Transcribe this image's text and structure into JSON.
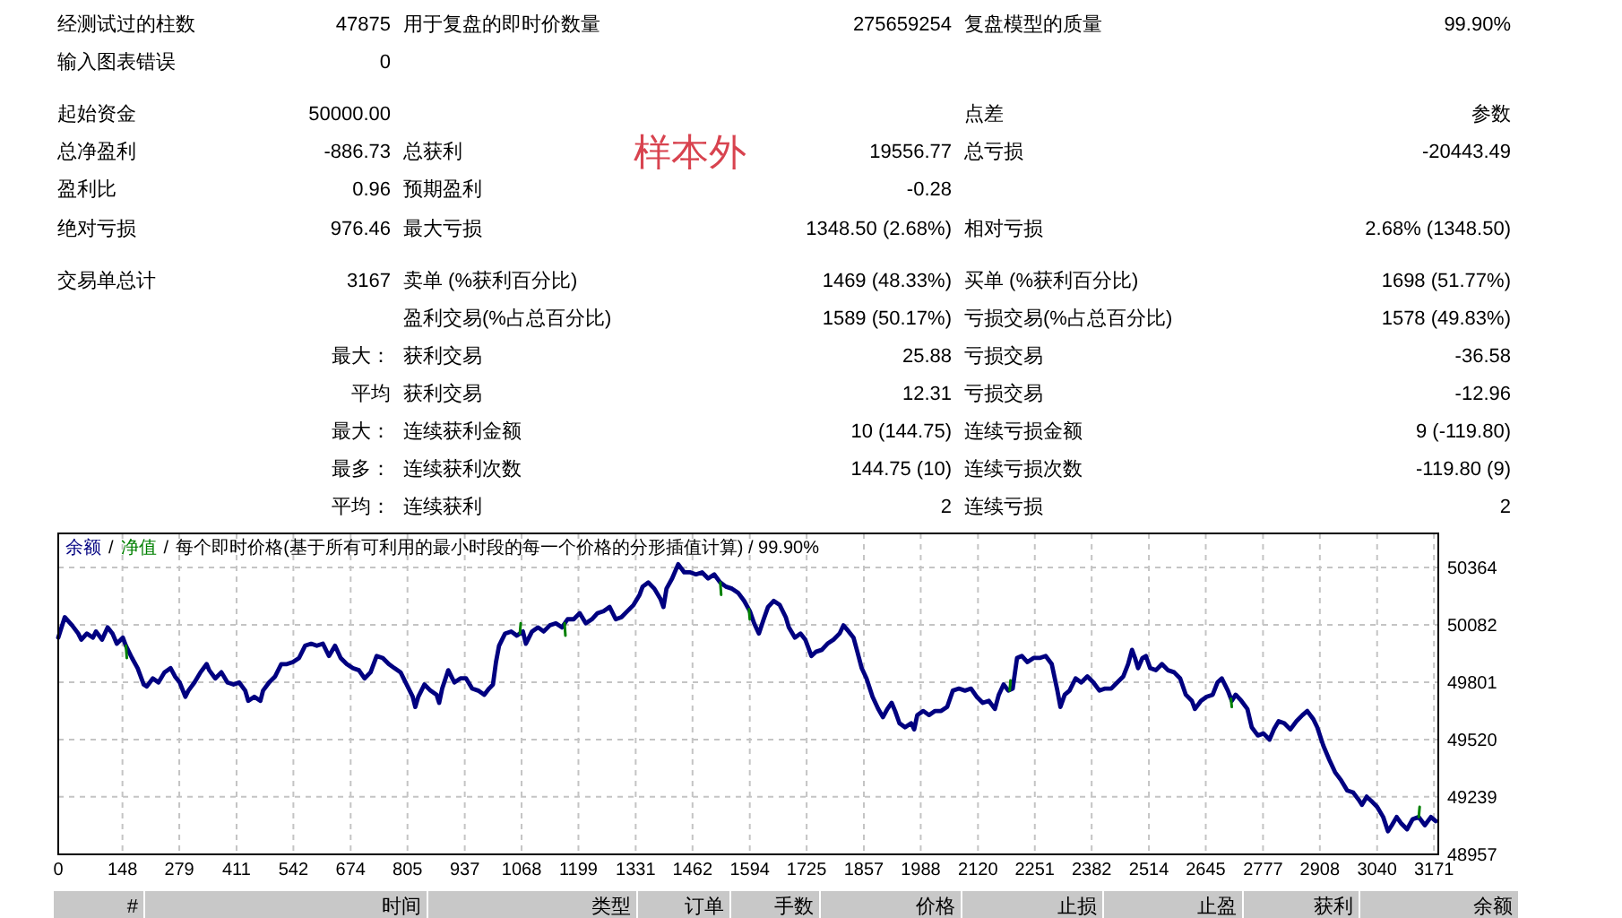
{
  "chart_data": [
    {
      "type": "other",
      "annotations": [
        "经测试过的柱数",
        "47875",
        "用于复盘的即时价数量",
        "275659254",
        "复盘模型的质量",
        "99.90%",
        "输入图表错误",
        "0",
        "起始资金",
        "50000.00",
        "点差",
        "参数",
        "总净盈利",
        "-886.73",
        "总获利",
        "样本外",
        "19556.77",
        "总亏损",
        "-20443.49",
        "盈利比",
        "0.96",
        "预期盈利",
        "-0.28",
        "绝对亏损",
        "976.46",
        "最大亏损",
        "1348.50 (2.68%)",
        "相对亏损",
        "2.68% (1348.50)",
        "交易单总计",
        "3167",
        "卖单 (%获利百分比)",
        "1469 (48.33%)",
        "买单 (%获利百分比)",
        "1698 (51.77%)",
        "盈利交易(%占总百分比)",
        "1589 (50.17%)",
        "亏损交易(%占总百分比)",
        "1578 (49.83%)",
        "最大：",
        "获利交易",
        "25.88",
        "亏损交易",
        "-36.58",
        "平均",
        "获利交易",
        "12.31",
        "亏损交易",
        "-12.96",
        "最大：",
        "连续获利金额",
        "10 (144.75)",
        "连续亏损金额",
        "9 (-119.80)",
        "最多：",
        "连续获利次数",
        "144.75 (10)",
        "连续亏损次数",
        "-119.80 (9)",
        "平均：",
        "连续获利",
        "2",
        "连续亏损",
        "2"
      ]
    },
    {
      "type": "line",
      "title": "每个即时价格(基于所有可利用的最小时段的每一个价格的分形插值计算) / 99.90%",
      "annotations": [
        "/",
        "/"
      ],
      "legend": "top left",
      "grid": true,
      "xlim": [
        0,
        3181
      ],
      "xticks": [
        0,
        148,
        279,
        411,
        542,
        674,
        805,
        937,
        1068,
        1199,
        1331,
        1462,
        1594,
        1725,
        1857,
        1988,
        2120,
        2251,
        2382,
        2514,
        2645,
        2777,
        2908,
        3040,
        3171
      ],
      "ylim": [
        48957,
        50531
      ],
      "yticks": [
        48957,
        49239,
        49520,
        49801,
        50082,
        50364
      ],
      "x": [
        0,
        15,
        32,
        46,
        53,
        66,
        80,
        87,
        101,
        114,
        125,
        135,
        149,
        156,
        170,
        183,
        197,
        204,
        218,
        231,
        245,
        259,
        269,
        280,
        293,
        300,
        314,
        328,
        342,
        348,
        362,
        376,
        390,
        404,
        417,
        431,
        438,
        452,
        466,
        472,
        486,
        500,
        514,
        527,
        541,
        555,
        569,
        583,
        596,
        610,
        624,
        638,
        651,
        665,
        679,
        693,
        706,
        720,
        734,
        748,
        762,
        775,
        789,
        803,
        817,
        823,
        830,
        837,
        844,
        858,
        872,
        878,
        885,
        899,
        913,
        927,
        940,
        954,
        968,
        982,
        993,
        1002,
        1009,
        1016,
        1030,
        1044,
        1057,
        1071,
        1078,
        1092,
        1106,
        1119,
        1133,
        1147,
        1161,
        1174,
        1188,
        1202,
        1216,
        1230,
        1243,
        1257,
        1271,
        1285,
        1298,
        1312,
        1326,
        1340,
        1347,
        1360,
        1374,
        1388,
        1395,
        1402,
        1415,
        1429,
        1443,
        1457,
        1470,
        1484,
        1498,
        1512,
        1526,
        1539,
        1553,
        1567,
        1581,
        1594,
        1604,
        1615,
        1626,
        1636,
        1649,
        1663,
        1677,
        1684,
        1698,
        1711,
        1722,
        1736,
        1746,
        1760,
        1773,
        1787,
        1801,
        1810,
        1822,
        1833,
        1842,
        1852,
        1863,
        1877,
        1890,
        1901,
        1911,
        1921,
        1929,
        1939,
        1952,
        1966,
        1973,
        1980,
        1994,
        2007,
        2021,
        2035,
        2049,
        2062,
        2076,
        2090,
        2104,
        2117,
        2131,
        2145,
        2159,
        2168,
        2179,
        2190,
        2200,
        2210,
        2221,
        2234,
        2248,
        2262,
        2276,
        2290,
        2303,
        2310,
        2320,
        2331,
        2345,
        2358,
        2372,
        2386,
        2400,
        2413,
        2427,
        2441,
        2455,
        2466,
        2475,
        2482,
        2489,
        2499,
        2507,
        2517,
        2530,
        2544,
        2558,
        2572,
        2586,
        2599,
        2613,
        2620,
        2634,
        2647,
        2661,
        2672,
        2682,
        2696,
        2705,
        2714,
        2727,
        2741,
        2751,
        2765,
        2778,
        2792,
        2802,
        2813,
        2826,
        2840,
        2854,
        2868,
        2879,
        2893,
        2902,
        2916,
        2930,
        2943,
        2957,
        2971,
        2985,
        2999,
        3005,
        3016,
        3026,
        3040,
        3054,
        3065,
        3074,
        3085,
        3095,
        3109,
        3122,
        3136,
        3150,
        3164,
        3175
      ],
      "series": [
        {
          "name": "余额",
          "color": "#000080",
          "values": [
            50020,
            50120,
            50080,
            50040,
            50010,
            50040,
            50020,
            50050,
            50010,
            50070,
            50040,
            49990,
            50020,
            49980,
            49920,
            49870,
            49790,
            49780,
            49820,
            49800,
            49850,
            49870,
            49830,
            49800,
            49730,
            49760,
            49800,
            49850,
            49890,
            49860,
            49820,
            49850,
            49800,
            49790,
            49800,
            49760,
            49710,
            49730,
            49710,
            49760,
            49800,
            49830,
            49890,
            49890,
            49900,
            49920,
            49980,
            49990,
            49980,
            49990,
            49930,
            49980,
            49920,
            49890,
            49870,
            49860,
            49820,
            49850,
            49930,
            49920,
            49890,
            49870,
            49850,
            49790,
            49730,
            49680,
            49730,
            49760,
            49790,
            49760,
            49740,
            49700,
            49770,
            49860,
            49800,
            49820,
            49820,
            49770,
            49760,
            49740,
            49770,
            49790,
            49900,
            49980,
            50040,
            50050,
            50030,
            50050,
            49990,
            50050,
            50070,
            50050,
            50080,
            50090,
            50070,
            50110,
            50110,
            50140,
            50090,
            50110,
            50140,
            50150,
            50170,
            50110,
            50120,
            50150,
            50180,
            50230,
            50270,
            50290,
            50260,
            50210,
            50170,
            50260,
            50310,
            50380,
            50340,
            50340,
            50330,
            50340,
            50310,
            50330,
            50290,
            50270,
            50260,
            50240,
            50200,
            50150,
            50090,
            50040,
            50110,
            50170,
            50200,
            50180,
            50120,
            50070,
            50020,
            50040,
            50010,
            49930,
            49950,
            49960,
            49990,
            50010,
            50040,
            50080,
            50050,
            50020,
            49950,
            49870,
            49820,
            49730,
            49670,
            49630,
            49670,
            49700,
            49660,
            49600,
            49580,
            49600,
            49570,
            49640,
            49660,
            49640,
            49660,
            49660,
            49680,
            49760,
            49770,
            49760,
            49770,
            49730,
            49700,
            49710,
            49670,
            49740,
            49790,
            49760,
            49770,
            49920,
            49930,
            49900,
            49920,
            49920,
            49930,
            49890,
            49760,
            49680,
            49740,
            49760,
            49820,
            49800,
            49830,
            49800,
            49760,
            49770,
            49770,
            49800,
            49830,
            49890,
            49960,
            49920,
            49870,
            49920,
            49930,
            49870,
            49860,
            49890,
            49860,
            49850,
            49820,
            49740,
            49710,
            49670,
            49710,
            49730,
            49740,
            49800,
            49820,
            49760,
            49710,
            49740,
            49710,
            49670,
            49580,
            49540,
            49550,
            49520,
            49570,
            49610,
            49600,
            49570,
            49610,
            49640,
            49660,
            49620,
            49580,
            49490,
            49420,
            49360,
            49320,
            49270,
            49260,
            49220,
            49200,
            49240,
            49220,
            49190,
            49140,
            49070,
            49100,
            49140,
            49110,
            49080,
            49130,
            49140,
            49100,
            49140,
            49120
          ]
        },
        {
          "name": "净值",
          "color": "#008000",
          "x": [
            156,
            158,
            null,
            1064,
            1066,
            null,
            1167,
            1169,
            null,
            1526,
            1528,
            null,
            1592,
            1594,
            null,
            2193,
            2195,
            null,
            2703,
            2705,
            null,
            3136,
            3138
          ],
          "values": [
            49980,
            49920,
            null,
            50040,
            50090,
            null,
            50090,
            50030,
            null,
            50290,
            50230,
            null,
            50160,
            50110,
            null,
            49760,
            49810,
            null,
            49720,
            49680,
            null,
            49140,
            49190
          ]
        }
      ]
    },
    {
      "type": "other",
      "annotations": [
        "#",
        "时间",
        "类型",
        "订单",
        "手数",
        "价格",
        "止损",
        "止盈",
        "获利",
        "余额"
      ]
    }
  ]
}
